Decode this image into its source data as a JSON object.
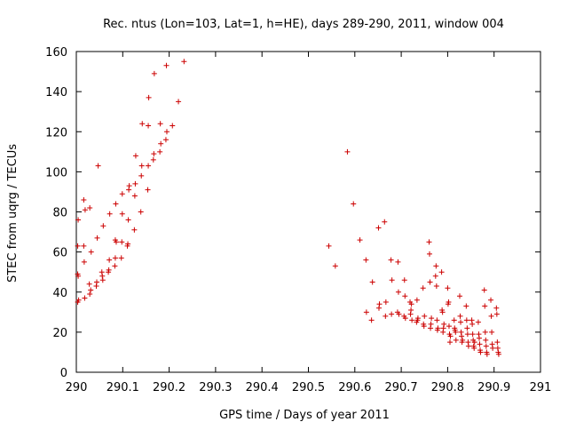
{
  "chart_data": {
    "type": "scatter",
    "title": "Rec. ntus (Lon=103, Lat=1, h=HE), days 289-290, 2011, window 004",
    "xlabel": "GPS time / Days of year 2011",
    "ylabel": "STEC from uqrg / TECUs",
    "xlim": [
      290,
      291
    ],
    "ylim": [
      0,
      160
    ],
    "xticks": [
      "290",
      "290.1",
      "290.2",
      "290.3",
      "290.4",
      "290.5",
      "290.6",
      "290.7",
      "290.8",
      "290.9",
      "291"
    ],
    "yticks": [
      "0",
      "20",
      "40",
      "60",
      "80",
      "100",
      "120",
      "140",
      "160"
    ],
    "grid": false,
    "marker": "+",
    "color": "#cc0000",
    "series": [
      {
        "points": [
          [
            290.003,
            63
          ],
          [
            290.003,
            49
          ],
          [
            290.003,
            35
          ],
          [
            290.004,
            76
          ],
          [
            290.004,
            48
          ],
          [
            290.005,
            36
          ],
          [
            290.016,
            86
          ],
          [
            290.016,
            63
          ],
          [
            290.017,
            55
          ],
          [
            290.018,
            37
          ],
          [
            290.019,
            81
          ],
          [
            290.028,
            44
          ],
          [
            290.029,
            39
          ],
          [
            290.029,
            82
          ],
          [
            290.031,
            41
          ],
          [
            290.032,
            60
          ],
          [
            290.043,
            43
          ],
          [
            290.044,
            45
          ],
          [
            290.045,
            67
          ],
          [
            290.047,
            103
          ],
          [
            290.055,
            50
          ],
          [
            290.056,
            48
          ],
          [
            290.057,
            46
          ],
          [
            290.058,
            73
          ],
          [
            290.069,
            50
          ],
          [
            290.07,
            51
          ],
          [
            290.071,
            56
          ],
          [
            290.072,
            79
          ],
          [
            290.083,
            53
          ],
          [
            290.084,
            57
          ],
          [
            290.084,
            66
          ],
          [
            290.085,
            84
          ],
          [
            290.086,
            65
          ],
          [
            290.097,
            57
          ],
          [
            290.098,
            65
          ],
          [
            290.099,
            79
          ],
          [
            290.099,
            89
          ],
          [
            290.11,
            63
          ],
          [
            290.111,
            64
          ],
          [
            290.112,
            76
          ],
          [
            290.113,
            91
          ],
          [
            290.114,
            93
          ],
          [
            290.125,
            71
          ],
          [
            290.126,
            88
          ],
          [
            290.127,
            94
          ],
          [
            290.128,
            108
          ],
          [
            290.139,
            80
          ],
          [
            290.14,
            98
          ],
          [
            290.141,
            103
          ],
          [
            290.142,
            124
          ],
          [
            290.154,
            91
          ],
          [
            290.155,
            103
          ],
          [
            290.155,
            123
          ],
          [
            290.156,
            137
          ],
          [
            290.166,
            106
          ],
          [
            290.167,
            109
          ],
          [
            290.168,
            149
          ],
          [
            290.18,
            110
          ],
          [
            290.181,
            124
          ],
          [
            290.182,
            114
          ],
          [
            290.193,
            116
          ],
          [
            290.194,
            153
          ],
          [
            290.195,
            120
          ],
          [
            290.207,
            123
          ],
          [
            290.22,
            135
          ],
          [
            290.232,
            155
          ],
          [
            290.544,
            63
          ],
          [
            290.558,
            53
          ],
          [
            290.584,
            110
          ],
          [
            290.597,
            84
          ],
          [
            290.611,
            66
          ],
          [
            290.624,
            56
          ],
          [
            290.625,
            30
          ],
          [
            290.636,
            26
          ],
          [
            290.638,
            45
          ],
          [
            290.651,
            72
          ],
          [
            290.652,
            32
          ],
          [
            290.653,
            34
          ],
          [
            290.664,
            75
          ],
          [
            290.666,
            28
          ],
          [
            290.667,
            35
          ],
          [
            290.678,
            56
          ],
          [
            290.679,
            29
          ],
          [
            290.68,
            46
          ],
          [
            290.692,
            30
          ],
          [
            290.693,
            55
          ],
          [
            290.694,
            40
          ],
          [
            290.695,
            29
          ],
          [
            290.706,
            28
          ],
          [
            290.707,
            46
          ],
          [
            290.708,
            38
          ],
          [
            290.709,
            27
          ],
          [
            290.719,
            35
          ],
          [
            290.72,
            29
          ],
          [
            290.721,
            31
          ],
          [
            290.722,
            34
          ],
          [
            290.723,
            26
          ],
          [
            290.733,
            25
          ],
          [
            290.734,
            36
          ],
          [
            290.735,
            26
          ],
          [
            290.736,
            27
          ],
          [
            290.747,
            42
          ],
          [
            290.748,
            24
          ],
          [
            290.749,
            23
          ],
          [
            290.75,
            28
          ],
          [
            290.76,
            65
          ],
          [
            290.761,
            59
          ],
          [
            290.762,
            45
          ],
          [
            290.763,
            22
          ],
          [
            290.764,
            24
          ],
          [
            290.765,
            27
          ],
          [
            290.774,
            48
          ],
          [
            290.775,
            53
          ],
          [
            290.776,
            43
          ],
          [
            290.777,
            26
          ],
          [
            290.778,
            21
          ],
          [
            290.779,
            22
          ],
          [
            290.787,
            50
          ],
          [
            290.788,
            31
          ],
          [
            290.789,
            30
          ],
          [
            290.79,
            20
          ],
          [
            290.791,
            22
          ],
          [
            290.792,
            24
          ],
          [
            290.8,
            42
          ],
          [
            290.801,
            34
          ],
          [
            290.802,
            35
          ],
          [
            290.803,
            23
          ],
          [
            290.804,
            19
          ],
          [
            290.805,
            15
          ],
          [
            290.806,
            18
          ],
          [
            290.814,
            26
          ],
          [
            290.815,
            22
          ],
          [
            290.816,
            21
          ],
          [
            290.817,
            20
          ],
          [
            290.818,
            16
          ],
          [
            290.826,
            38
          ],
          [
            290.827,
            28
          ],
          [
            290.828,
            25
          ],
          [
            290.829,
            20
          ],
          [
            290.83,
            18
          ],
          [
            290.831,
            15
          ],
          [
            290.832,
            16
          ],
          [
            290.84,
            33
          ],
          [
            290.841,
            26
          ],
          [
            290.842,
            22
          ],
          [
            290.843,
            19
          ],
          [
            290.844,
            15
          ],
          [
            290.845,
            13
          ],
          [
            290.852,
            26
          ],
          [
            290.853,
            24
          ],
          [
            290.854,
            19
          ],
          [
            290.855,
            16
          ],
          [
            290.856,
            13
          ],
          [
            290.857,
            12
          ],
          [
            290.858,
            15
          ],
          [
            290.866,
            25
          ],
          [
            290.867,
            19
          ],
          [
            290.868,
            17
          ],
          [
            290.869,
            14
          ],
          [
            290.87,
            11
          ],
          [
            290.871,
            10
          ],
          [
            290.879,
            41
          ],
          [
            290.88,
            33
          ],
          [
            290.881,
            20
          ],
          [
            290.882,
            16
          ],
          [
            290.883,
            13
          ],
          [
            290.884,
            10
          ],
          [
            290.885,
            9
          ],
          [
            290.893,
            36
          ],
          [
            290.894,
            28
          ],
          [
            290.895,
            20
          ],
          [
            290.896,
            14
          ],
          [
            290.897,
            12
          ],
          [
            290.905,
            32
          ],
          [
            290.906,
            29
          ],
          [
            290.907,
            15
          ],
          [
            290.908,
            12
          ],
          [
            290.909,
            10
          ],
          [
            290.91,
            9
          ]
        ]
      }
    ]
  }
}
